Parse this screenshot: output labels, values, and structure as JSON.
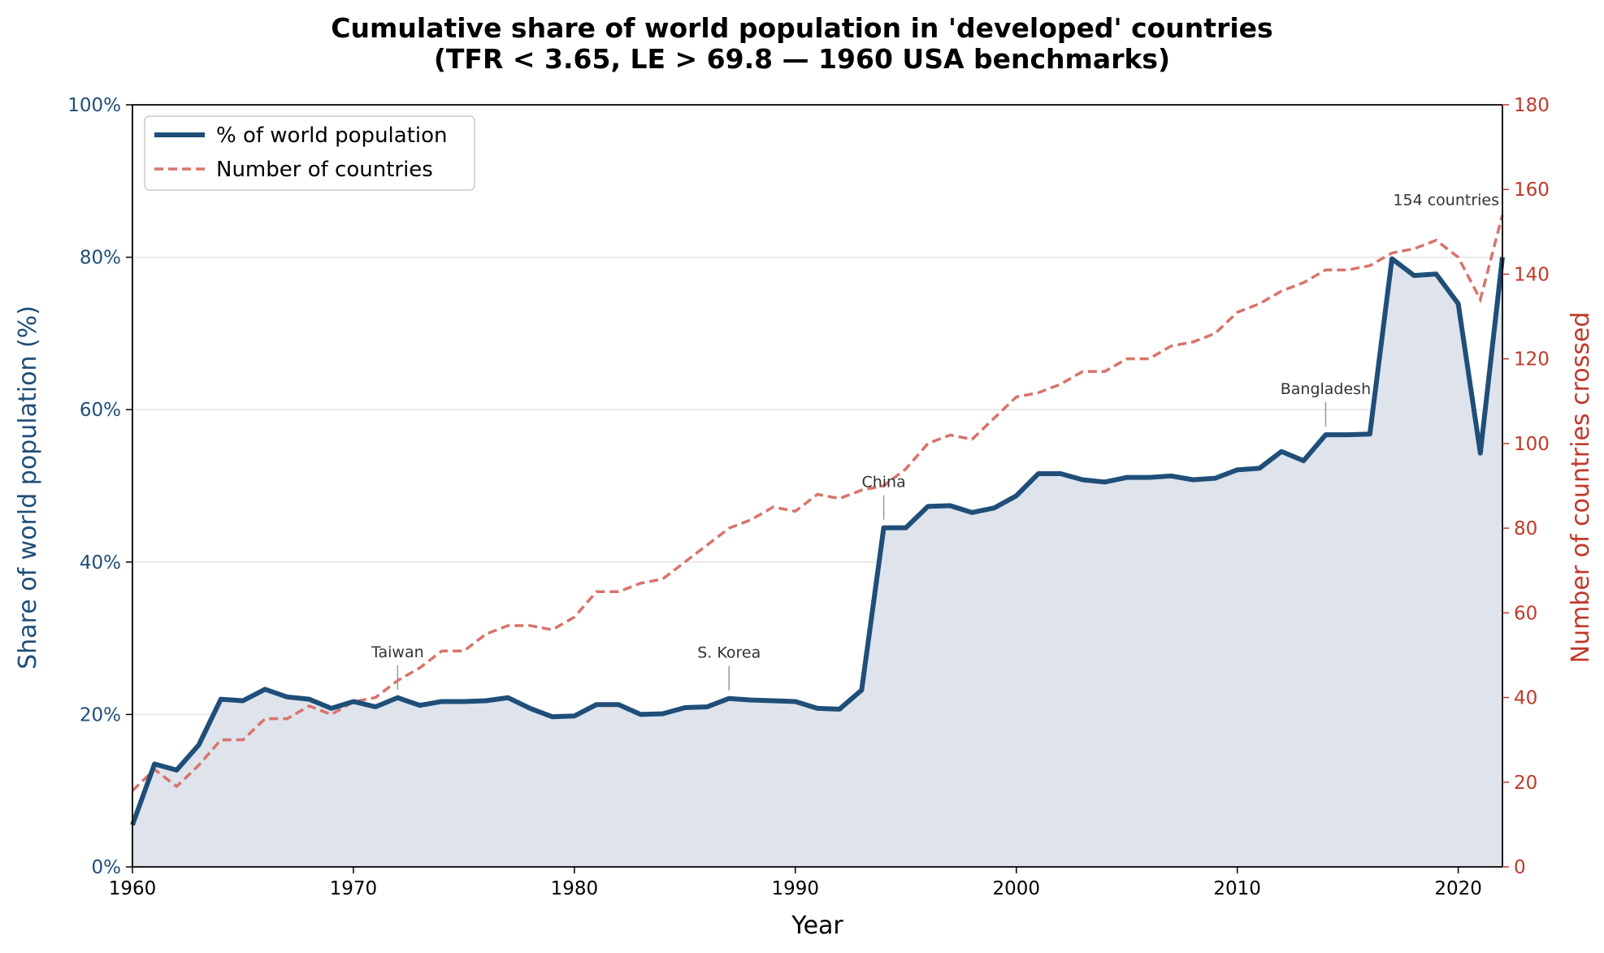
{
  "chart_data": {
    "type": "line",
    "title": "Cumulative share of world population in 'developed' countries",
    "subtitle": "(TFR < 3.65, LE > 69.8 — 1960 USA benchmarks)",
    "xlabel": "Year",
    "ylabel_left": "Share of world population (%)",
    "ylabel_right": "Number of countries crossed",
    "xlim": [
      1960,
      2022
    ],
    "ylim_left": [
      0,
      100
    ],
    "ylim_right": [
      0,
      180
    ],
    "x_ticks": [
      "1960",
      "1970",
      "1980",
      "1990",
      "2000",
      "2010",
      "2020"
    ],
    "y_ticks_left": [
      "0%",
      "20%",
      "40%",
      "60%",
      "80%",
      "100%"
    ],
    "y_ticks_right": [
      "0",
      "20",
      "40",
      "60",
      "80",
      "100",
      "120",
      "140",
      "160",
      "180"
    ],
    "grid": "horizontal",
    "legend_position": "top-left",
    "colors": {
      "share": "#1f4e79",
      "share_fill": "#dee3ec",
      "countries": "#d9736b",
      "left_axis": "#1f4e79",
      "right_axis": "#c0392b"
    },
    "x": [
      1960,
      1961,
      1962,
      1963,
      1964,
      1965,
      1966,
      1967,
      1968,
      1969,
      1970,
      1971,
      1972,
      1973,
      1974,
      1975,
      1976,
      1977,
      1978,
      1979,
      1980,
      1981,
      1982,
      1983,
      1984,
      1985,
      1986,
      1987,
      1988,
      1989,
      1990,
      1991,
      1992,
      1993,
      1994,
      1995,
      1996,
      1997,
      1998,
      1999,
      2000,
      2001,
      2002,
      2003,
      2004,
      2005,
      2006,
      2007,
      2008,
      2009,
      2010,
      2011,
      2012,
      2013,
      2014,
      2015,
      2016,
      2017,
      2018,
      2019,
      2020,
      2021,
      2022
    ],
    "series": [
      {
        "name": "% of world population",
        "axis": "left",
        "values": [
          5.5,
          13.5,
          12.7,
          16.0,
          22.0,
          21.8,
          23.3,
          22.3,
          22.0,
          20.8,
          21.7,
          21.0,
          22.2,
          21.2,
          21.7,
          21.7,
          21.8,
          22.2,
          20.8,
          19.7,
          19.8,
          21.3,
          21.3,
          20.0,
          20.1,
          20.9,
          21.0,
          22.1,
          21.9,
          21.8,
          21.7,
          20.8,
          20.7,
          23.2,
          44.5,
          44.5,
          47.3,
          47.4,
          46.5,
          47.1,
          48.7,
          51.6,
          51.6,
          50.8,
          50.5,
          51.1,
          51.1,
          51.3,
          50.8,
          51.0,
          52.1,
          52.3,
          54.5,
          53.3,
          56.7,
          56.7,
          56.8,
          79.8,
          77.6,
          77.8,
          73.9,
          54.3,
          80.0
        ]
      },
      {
        "name": "Number of countries",
        "axis": "right",
        "values": [
          18,
          23,
          19,
          24,
          30,
          30,
          35,
          35,
          38,
          36,
          39,
          40,
          44,
          47,
          51,
          51,
          55,
          57,
          57,
          56,
          59,
          65,
          65,
          67,
          68,
          72,
          76,
          80,
          82,
          85,
          84,
          88,
          87,
          89,
          90,
          94,
          100,
          102,
          101,
          106,
          111,
          112,
          114,
          117,
          117,
          120,
          120,
          123,
          124,
          126,
          131,
          133,
          136,
          138,
          141,
          141,
          142,
          145,
          146,
          148,
          144,
          134,
          154
        ]
      }
    ],
    "annotations": [
      {
        "text": "Taiwan",
        "year": 1972
      },
      {
        "text": "S. Korea",
        "year": 1987
      },
      {
        "text": "China",
        "year": 1994
      },
      {
        "text": "Bangladesh",
        "year": 2014
      },
      {
        "text": "154 countries",
        "year": 2022
      }
    ]
  }
}
